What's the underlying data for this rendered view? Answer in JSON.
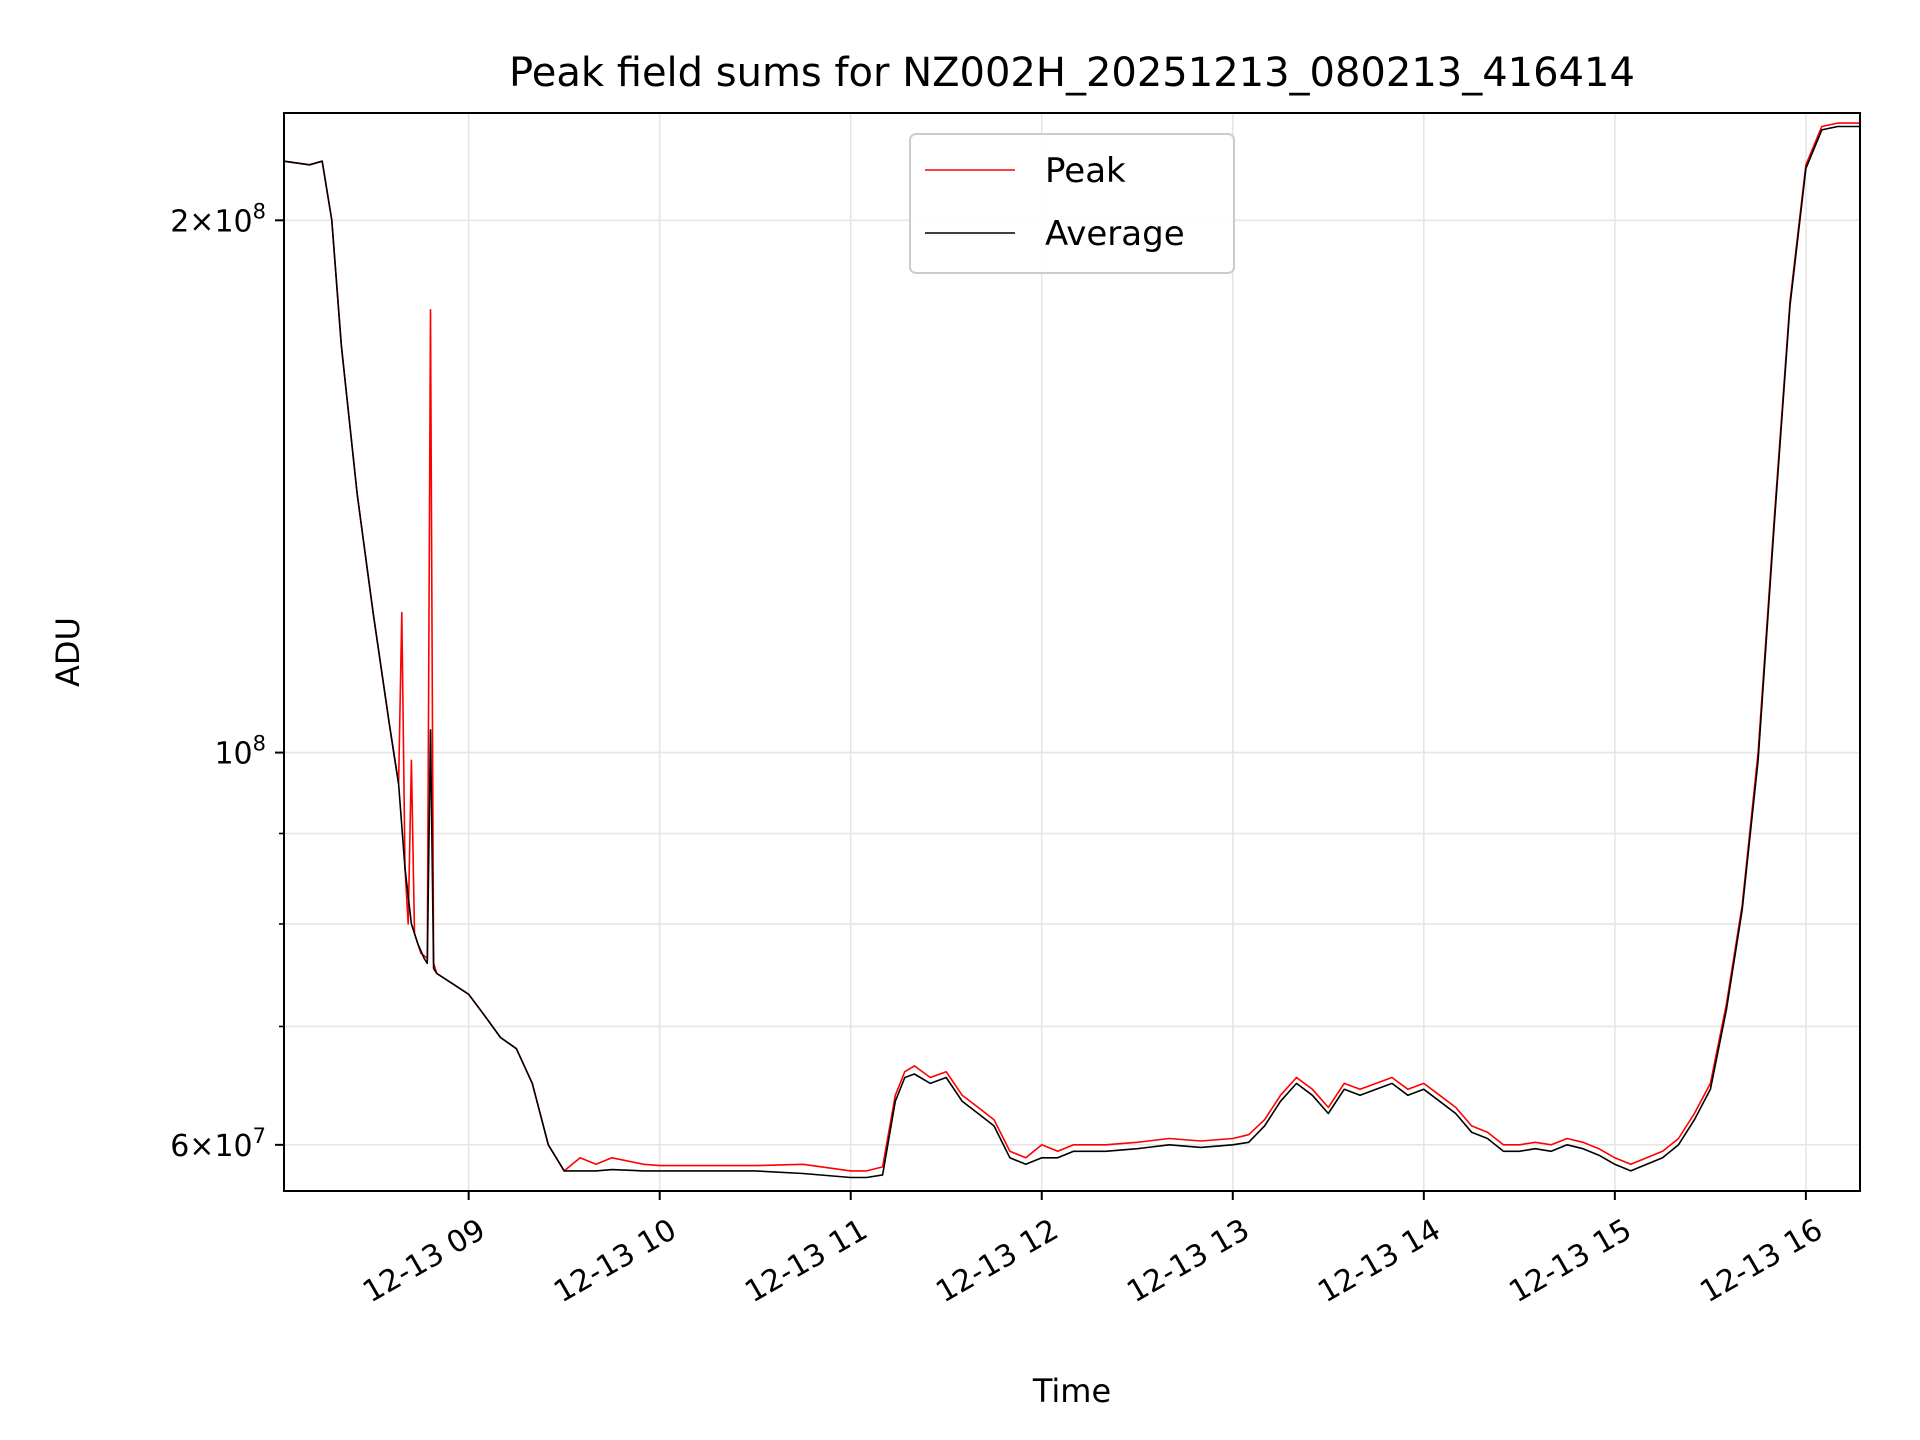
{
  "chart_data": {
    "type": "line",
    "title": "Peak field sums for NZ002H_20251213_080213_416414",
    "xlabel": "Time",
    "ylabel": "ADU",
    "y_scale": "log",
    "xlim": [
      "2025-12-13 08:02",
      "2025-12-13 16:17"
    ],
    "ylim": [
      56500000,
      230000000
    ],
    "grid": true,
    "legend_placement": "upper center",
    "x_tick_labels": [
      "12-13 09",
      "12-13 10",
      "12-13 11",
      "12-13 12",
      "12-13 13",
      "12-13 14",
      "12-13 15",
      "12-13 16"
    ],
    "x_tick_times": [
      "2025-12-13 09:00",
      "2025-12-13 10:00",
      "2025-12-13 11:00",
      "2025-12-13 12:00",
      "2025-12-13 13:00",
      "2025-12-13 14:00",
      "2025-12-13 15:00",
      "2025-12-13 16:00"
    ],
    "y_major_ticks": [
      {
        "value": 60000000,
        "mant": "6",
        "sep": "×10",
        "exp": "7"
      },
      {
        "value": 100000000,
        "mant": "",
        "sep": "10",
        "exp": "8"
      },
      {
        "value": 200000000,
        "mant": "2",
        "sep": "×10",
        "exp": "8"
      }
    ],
    "y_minor_ticks": [
      70000000,
      80000000,
      90000000
    ],
    "series": [
      {
        "name": "Peak",
        "color": "#ff0000",
        "x": [
          "2025-12-13 08:02",
          "2025-12-13 08:10",
          "2025-12-13 08:14",
          "2025-12-13 08:17",
          "2025-12-13 08:20",
          "2025-12-13 08:25",
          "2025-12-13 08:30",
          "2025-12-13 08:35",
          "2025-12-13 08:38",
          "2025-12-13 08:39",
          "2025-12-13 08:40",
          "2025-12-13 08:41",
          "2025-12-13 08:42",
          "2025-12-13 08:43",
          "2025-12-13 08:44",
          "2025-12-13 08:45",
          "2025-12-13 08:47",
          "2025-12-13 08:48",
          "2025-12-13 08:49",
          "2025-12-13 08:50",
          "2025-12-13 08:55",
          "2025-12-13 09:00",
          "2025-12-13 09:05",
          "2025-12-13 09:10",
          "2025-12-13 09:15",
          "2025-12-13 09:20",
          "2025-12-13 09:25",
          "2025-12-13 09:30",
          "2025-12-13 09:35",
          "2025-12-13 09:40",
          "2025-12-13 09:45",
          "2025-12-13 09:55",
          "2025-12-13 10:00",
          "2025-12-13 10:30",
          "2025-12-13 10:45",
          "2025-12-13 11:00",
          "2025-12-13 11:05",
          "2025-12-13 11:10",
          "2025-12-13 11:14",
          "2025-12-13 11:17",
          "2025-12-13 11:20",
          "2025-12-13 11:25",
          "2025-12-13 11:30",
          "2025-12-13 11:35",
          "2025-12-13 11:40",
          "2025-12-13 11:45",
          "2025-12-13 11:50",
          "2025-12-13 11:55",
          "2025-12-13 12:00",
          "2025-12-13 12:05",
          "2025-12-13 12:10",
          "2025-12-13 12:20",
          "2025-12-13 12:30",
          "2025-12-13 12:40",
          "2025-12-13 12:50",
          "2025-12-13 13:00",
          "2025-12-13 13:05",
          "2025-12-13 13:10",
          "2025-12-13 13:15",
          "2025-12-13 13:20",
          "2025-12-13 13:25",
          "2025-12-13 13:30",
          "2025-12-13 13:35",
          "2025-12-13 13:40",
          "2025-12-13 13:45",
          "2025-12-13 13:50",
          "2025-12-13 13:55",
          "2025-12-13 14:00",
          "2025-12-13 14:05",
          "2025-12-13 14:10",
          "2025-12-13 14:15",
          "2025-12-13 14:20",
          "2025-12-13 14:25",
          "2025-12-13 14:30",
          "2025-12-13 14:35",
          "2025-12-13 14:40",
          "2025-12-13 14:45",
          "2025-12-13 14:50",
          "2025-12-13 14:55",
          "2025-12-13 15:00",
          "2025-12-13 15:05",
          "2025-12-13 15:10",
          "2025-12-13 15:15",
          "2025-12-13 15:20",
          "2025-12-13 15:25",
          "2025-12-13 15:30",
          "2025-12-13 15:35",
          "2025-12-13 15:40",
          "2025-12-13 15:45",
          "2025-12-13 15:50",
          "2025-12-13 15:55",
          "2025-12-13 16:00",
          "2025-12-13 16:05",
          "2025-12-13 16:10",
          "2025-12-13 16:17"
        ],
        "y": [
          216000000,
          215000000,
          216000000,
          200000000,
          170000000,
          140000000,
          120000000,
          104000000,
          96000000,
          120000000,
          86000000,
          80000000,
          99000000,
          79000000,
          78000000,
          77000000,
          76500000,
          178000000,
          76000000,
          75000000,
          74000000,
          73000000,
          71000000,
          69000000,
          68000000,
          65000000,
          60000000,
          58000000,
          59000000,
          58500000,
          59000000,
          58500000,
          58400000,
          58400000,
          58500000,
          58000000,
          58000000,
          58300000,
          64000000,
          66000000,
          66500000,
          65500000,
          66000000,
          64000000,
          63000000,
          62000000,
          59500000,
          59000000,
          60000000,
          59500000,
          60000000,
          60000000,
          60200000,
          60500000,
          60300000,
          60500000,
          60800000,
          62000000,
          64000000,
          65500000,
          64500000,
          63000000,
          65000000,
          64500000,
          65000000,
          65500000,
          64500000,
          65000000,
          64000000,
          63000000,
          61500000,
          61000000,
          60000000,
          60000000,
          60200000,
          60000000,
          60500000,
          60200000,
          59700000,
          59000000,
          58500000,
          59000000,
          59500000,
          60500000,
          62500000,
          65000000,
          72000000,
          82000000,
          100000000,
          135000000,
          180000000,
          215000000,
          226000000,
          227000000,
          227000000
        ]
      },
      {
        "name": "Average",
        "color": "#000000",
        "x": [
          "2025-12-13 08:02",
          "2025-12-13 08:10",
          "2025-12-13 08:14",
          "2025-12-13 08:17",
          "2025-12-13 08:20",
          "2025-12-13 08:25",
          "2025-12-13 08:30",
          "2025-12-13 08:35",
          "2025-12-13 08:38",
          "2025-12-13 08:40",
          "2025-12-13 08:42",
          "2025-12-13 08:44",
          "2025-12-13 08:46",
          "2025-12-13 08:47",
          "2025-12-13 08:48",
          "2025-12-13 08:49",
          "2025-12-13 08:50",
          "2025-12-13 08:55",
          "2025-12-13 09:00",
          "2025-12-13 09:05",
          "2025-12-13 09:10",
          "2025-12-13 09:15",
          "2025-12-13 09:20",
          "2025-12-13 09:25",
          "2025-12-13 09:30",
          "2025-12-13 09:35",
          "2025-12-13 09:40",
          "2025-12-13 09:45",
          "2025-12-13 09:55",
          "2025-12-13 10:00",
          "2025-12-13 10:30",
          "2025-12-13 10:45",
          "2025-12-13 11:00",
          "2025-12-13 11:05",
          "2025-12-13 11:10",
          "2025-12-13 11:14",
          "2025-12-13 11:17",
          "2025-12-13 11:20",
          "2025-12-13 11:25",
          "2025-12-13 11:30",
          "2025-12-13 11:35",
          "2025-12-13 11:40",
          "2025-12-13 11:45",
          "2025-12-13 11:50",
          "2025-12-13 11:55",
          "2025-12-13 12:00",
          "2025-12-13 12:05",
          "2025-12-13 12:10",
          "2025-12-13 12:20",
          "2025-12-13 12:30",
          "2025-12-13 12:40",
          "2025-12-13 12:50",
          "2025-12-13 13:00",
          "2025-12-13 13:05",
          "2025-12-13 13:10",
          "2025-12-13 13:15",
          "2025-12-13 13:20",
          "2025-12-13 13:25",
          "2025-12-13 13:30",
          "2025-12-13 13:35",
          "2025-12-13 13:40",
          "2025-12-13 13:45",
          "2025-12-13 13:50",
          "2025-12-13 13:55",
          "2025-12-13 14:00",
          "2025-12-13 14:05",
          "2025-12-13 14:10",
          "2025-12-13 14:15",
          "2025-12-13 14:20",
          "2025-12-13 14:25",
          "2025-12-13 14:30",
          "2025-12-13 14:35",
          "2025-12-13 14:40",
          "2025-12-13 14:45",
          "2025-12-13 14:50",
          "2025-12-13 14:55",
          "2025-12-13 15:00",
          "2025-12-13 15:05",
          "2025-12-13 15:10",
          "2025-12-13 15:15",
          "2025-12-13 15:20",
          "2025-12-13 15:25",
          "2025-12-13 15:30",
          "2025-12-13 15:35",
          "2025-12-13 15:40",
          "2025-12-13 15:45",
          "2025-12-13 15:50",
          "2025-12-13 15:55",
          "2025-12-13 16:00",
          "2025-12-13 16:05",
          "2025-12-13 16:10",
          "2025-12-13 16:17"
        ],
        "y": [
          216000000,
          215000000,
          216000000,
          200000000,
          170000000,
          140000000,
          120000000,
          104000000,
          96000000,
          86000000,
          80000000,
          78000000,
          76500000,
          76000000,
          103000000,
          75500000,
          75000000,
          74000000,
          73000000,
          71000000,
          69000000,
          68000000,
          65000000,
          60000000,
          58000000,
          58000000,
          58000000,
          58100000,
          58000000,
          58000000,
          58000000,
          57800000,
          57500000,
          57500000,
          57700000,
          63500000,
          65500000,
          65800000,
          65000000,
          65500000,
          63500000,
          62500000,
          61500000,
          59000000,
          58500000,
          59000000,
          59000000,
          59500000,
          59500000,
          59700000,
          60000000,
          59800000,
          60000000,
          60200000,
          61500000,
          63500000,
          65000000,
          64000000,
          62500000,
          64500000,
          64000000,
          64500000,
          65000000,
          64000000,
          64500000,
          63500000,
          62500000,
          61000000,
          60500000,
          59500000,
          59500000,
          59700000,
          59500000,
          60000000,
          59700000,
          59200000,
          58500000,
          58000000,
          58500000,
          59000000,
          60000000,
          62000000,
          64500000,
          71500000,
          81500000,
          99000000,
          134000000,
          179000000,
          214000000,
          225000000,
          226000000,
          226000000
        ]
      }
    ]
  }
}
